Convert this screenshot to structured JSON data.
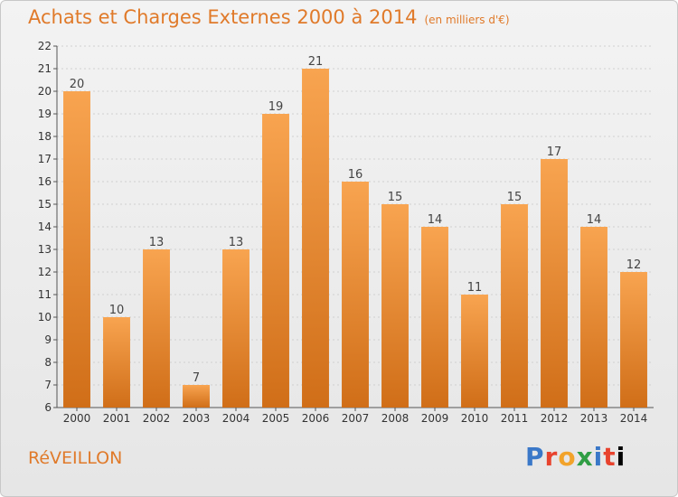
{
  "header": {
    "title": "Achats et Charges Externes 2000 à 2014",
    "subtitle": "(en milliers d'€)"
  },
  "footer": {
    "town": "RéVEILLON",
    "logo_letters": [
      "P",
      "r",
      "o",
      "x",
      "i",
      "t",
      "i"
    ]
  },
  "colors": {
    "bar_top": "#f8a450",
    "bar_bottom": "#d06e18",
    "text_accent": "#e07a2a",
    "grid": "#d0d0d0"
  },
  "chart_data": {
    "type": "bar",
    "title": "Achats et Charges Externes 2000 à 2014",
    "subtitle": "(en milliers d'€)",
    "categories": [
      "2000",
      "2001",
      "2002",
      "2003",
      "2004",
      "2005",
      "2006",
      "2007",
      "2008",
      "2009",
      "2010",
      "2011",
      "2012",
      "2013",
      "2014"
    ],
    "values": [
      20,
      10,
      13,
      7,
      13,
      19,
      21,
      16,
      15,
      14,
      11,
      15,
      17,
      14,
      12
    ],
    "ylim": [
      6,
      22
    ],
    "yticks": [
      6,
      7,
      8,
      9,
      10,
      11,
      12,
      13,
      14,
      15,
      16,
      17,
      18,
      19,
      20,
      21,
      22
    ],
    "grid": true,
    "xlabel": "",
    "ylabel": ""
  }
}
